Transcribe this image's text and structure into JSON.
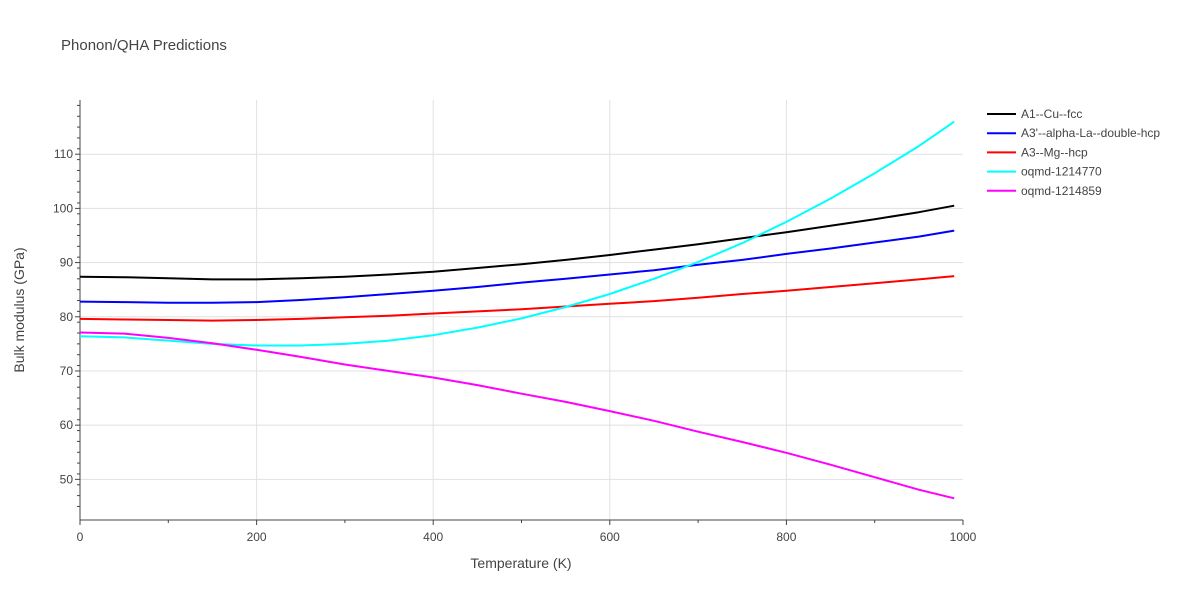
{
  "chart_data": {
    "type": "line",
    "title": "Phonon/QHA Predictions",
    "xlabel": "Temperature (K)",
    "ylabel": "Bulk modulus (GPa)",
    "xlim": [
      0,
      1000
    ],
    "ylim": [
      42.5,
      120
    ],
    "x_ticks": [
      0,
      200,
      400,
      600,
      800,
      1000
    ],
    "y_ticks": [
      50,
      60,
      70,
      80,
      90,
      100,
      110
    ],
    "grid": true,
    "legend_position": "top-right",
    "series": [
      {
        "name": "A1--Cu--fcc",
        "color": "#000000",
        "x": [
          0,
          50,
          100,
          150,
          200,
          250,
          300,
          350,
          400,
          450,
          500,
          550,
          600,
          650,
          700,
          750,
          800,
          850,
          900,
          950,
          990
        ],
        "y": [
          87.4,
          87.3,
          87.1,
          86.9,
          86.9,
          87.1,
          87.4,
          87.8,
          88.3,
          89.0,
          89.7,
          90.5,
          91.4,
          92.4,
          93.4,
          94.5,
          95.6,
          96.8,
          98.0,
          99.3,
          100.5
        ]
      },
      {
        "name": "A3'--alpha-La--double-hcp",
        "color": "#0000ff",
        "x": [
          0,
          50,
          100,
          150,
          200,
          250,
          300,
          350,
          400,
          450,
          500,
          550,
          600,
          650,
          700,
          750,
          800,
          850,
          900,
          950,
          990
        ],
        "y": [
          82.8,
          82.7,
          82.6,
          82.6,
          82.7,
          83.1,
          83.6,
          84.2,
          84.8,
          85.5,
          86.3,
          87.0,
          87.8,
          88.6,
          89.6,
          90.5,
          91.6,
          92.6,
          93.7,
          94.8,
          95.9
        ]
      },
      {
        "name": "A3--Mg--hcp",
        "color": "#ff0000",
        "x": [
          0,
          50,
          100,
          150,
          200,
          250,
          300,
          350,
          400,
          450,
          500,
          550,
          600,
          650,
          700,
          750,
          800,
          850,
          900,
          950,
          990
        ],
        "y": [
          79.6,
          79.5,
          79.4,
          79.3,
          79.4,
          79.6,
          79.9,
          80.2,
          80.6,
          81.0,
          81.4,
          81.9,
          82.4,
          82.9,
          83.5,
          84.2,
          84.8,
          85.5,
          86.2,
          86.9,
          87.5
        ]
      },
      {
        "name": "oqmd-1214770",
        "color": "#00ffff",
        "x": [
          0,
          50,
          100,
          150,
          200,
          250,
          300,
          350,
          400,
          450,
          500,
          550,
          600,
          650,
          700,
          750,
          800,
          850,
          900,
          950,
          990
        ],
        "y": [
          76.4,
          76.2,
          75.6,
          75.0,
          74.7,
          74.7,
          75.0,
          75.6,
          76.6,
          78.0,
          79.7,
          81.8,
          84.2,
          87.0,
          90.1,
          93.6,
          97.5,
          101.8,
          106.5,
          111.5,
          116.0
        ]
      },
      {
        "name": "oqmd-1214859",
        "color": "#ff00ff",
        "x": [
          0,
          50,
          100,
          150,
          200,
          250,
          300,
          350,
          400,
          450,
          500,
          550,
          600,
          650,
          700,
          750,
          800,
          850,
          900,
          950,
          990
        ],
        "y": [
          77.1,
          76.9,
          76.1,
          75.1,
          73.9,
          72.6,
          71.2,
          70.0,
          68.8,
          67.4,
          65.8,
          64.3,
          62.6,
          60.8,
          58.8,
          56.9,
          54.9,
          52.7,
          50.4,
          48.1,
          46.5
        ]
      }
    ]
  }
}
